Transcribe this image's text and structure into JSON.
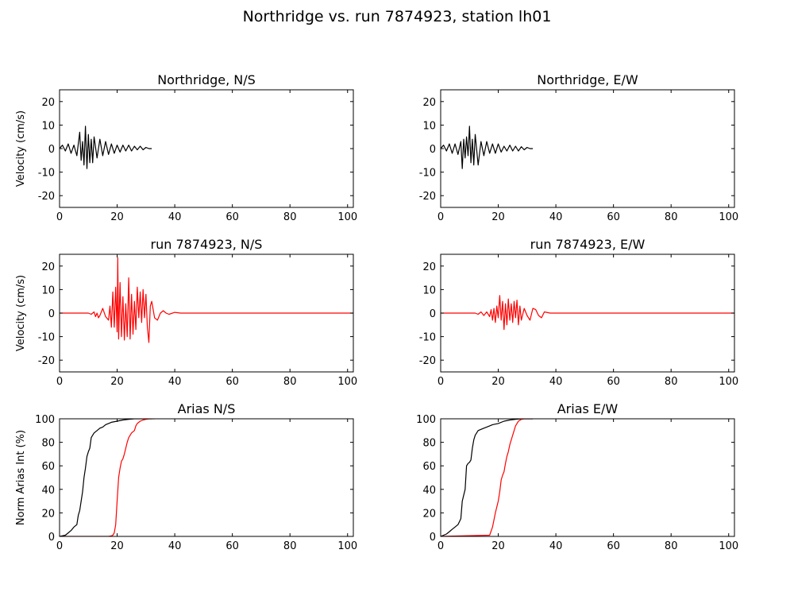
{
  "title": "Northridge vs. run 7874923, station lh01",
  "colors": {
    "recorded": "#000000",
    "simulated": "#ff0000",
    "axes": "#000000"
  },
  "chart_data": [
    {
      "type": "line",
      "title": "Northridge, N/S",
      "xlabel": "",
      "ylabel": "Velocity (cm/s)",
      "xlim": [
        0,
        102
      ],
      "ylim": [
        -25,
        25
      ],
      "xticks": [
        0,
        20,
        40,
        60,
        80,
        100
      ],
      "yticks": [
        -20,
        -10,
        0,
        10,
        20
      ],
      "series": [
        {
          "color": "#000000",
          "x": [
            0,
            1,
            2,
            3,
            4,
            5,
            6,
            7,
            7.5,
            8,
            8.5,
            9,
            9.5,
            10,
            10.5,
            11,
            11.5,
            12,
            13,
            14,
            15,
            16,
            17,
            18,
            19,
            20,
            21,
            22,
            23,
            24,
            25,
            26,
            27,
            28,
            29,
            30,
            31,
            32
          ],
          "y": [
            0,
            1.5,
            -1,
            2,
            -2,
            1.5,
            -3,
            7,
            -5,
            3,
            -7,
            9.5,
            -8.5,
            6,
            -6,
            4,
            -6,
            5,
            -4,
            4,
            -3,
            3,
            -2.5,
            2,
            -2,
            1.5,
            -1.5,
            1.5,
            -1,
            1.5,
            -1,
            1,
            -0.5,
            1,
            -0.5,
            0.5,
            0,
            0
          ]
        }
      ]
    },
    {
      "type": "line",
      "title": "Northridge, E/W",
      "xlabel": "",
      "ylabel": "",
      "xlim": [
        0,
        102
      ],
      "ylim": [
        -25,
        25
      ],
      "xticks": [
        0,
        20,
        40,
        60,
        80,
        100
      ],
      "yticks": [
        -20,
        -10,
        0,
        10,
        20
      ],
      "series": [
        {
          "color": "#000000",
          "x": [
            0,
            1,
            2,
            3,
            4,
            5,
            6,
            7,
            7.5,
            8,
            8.5,
            9,
            9.5,
            10,
            10.5,
            11,
            11.5,
            12,
            13,
            14,
            15,
            16,
            17,
            18,
            19,
            20,
            21,
            22,
            23,
            24,
            25,
            26,
            27,
            28,
            29,
            30,
            31,
            32
          ],
          "y": [
            0,
            1.5,
            -1,
            2,
            -2,
            2,
            -2.5,
            3,
            -8.5,
            4,
            -4,
            5,
            -3,
            9.5,
            -6,
            4,
            -7,
            6,
            -7,
            3,
            -3,
            3,
            -2,
            2,
            -2,
            2,
            -1.5,
            1,
            -1,
            1.5,
            -1,
            1,
            -1,
            0.8,
            -0.5,
            0.5,
            0,
            0
          ]
        }
      ]
    },
    {
      "type": "line",
      "title": "run 7874923, N/S",
      "xlabel": "",
      "ylabel": "Velocity (cm/s)",
      "xlim": [
        0,
        102
      ],
      "ylim": [
        -25,
        25
      ],
      "xticks": [
        0,
        20,
        40,
        60,
        80,
        100
      ],
      "yticks": [
        -20,
        -10,
        0,
        10,
        20
      ],
      "series": [
        {
          "color": "#ff0000",
          "x": [
            0,
            10,
            11,
            12,
            12.5,
            13,
            13.5,
            14,
            15,
            16,
            17,
            17.5,
            18,
            18.5,
            19,
            19.5,
            20,
            20.2,
            20.5,
            21,
            21.5,
            22,
            22.5,
            23,
            23.5,
            24,
            24.5,
            25,
            25.5,
            26,
            26.5,
            27,
            27.5,
            28,
            28.5,
            29,
            29.5,
            30,
            30.5,
            31,
            31.5,
            32,
            33,
            34,
            35,
            36,
            37,
            38,
            40,
            42,
            50,
            60,
            70,
            80,
            90,
            100,
            102
          ],
          "y": [
            0,
            0,
            -0.5,
            0.5,
            -1.5,
            0,
            -2,
            -1,
            2,
            -1.5,
            -3,
            3,
            -6,
            9,
            -6,
            11,
            -8,
            23.5,
            -11,
            13,
            -10,
            7,
            -11.5,
            4,
            -10,
            15,
            -11,
            8,
            -9,
            5,
            -7,
            11,
            -2,
            9,
            -4,
            10,
            -2,
            8,
            -6,
            -12.5,
            3,
            5,
            -2,
            -3,
            0,
            1,
            0,
            -0.5,
            0.3,
            0,
            0,
            0,
            0,
            0,
            0,
            0,
            0
          ]
        }
      ]
    },
    {
      "type": "line",
      "title": "run 7874923, E/W",
      "xlabel": "",
      "ylabel": "",
      "xlim": [
        0,
        102
      ],
      "ylim": [
        -25,
        25
      ],
      "xticks": [
        0,
        20,
        40,
        60,
        80,
        100
      ],
      "yticks": [
        -20,
        -10,
        0,
        10,
        20
      ],
      "series": [
        {
          "color": "#ff0000",
          "x": [
            0,
            12,
            13,
            14,
            15,
            16,
            17,
            17.5,
            18,
            18.5,
            19,
            19.5,
            20,
            20.5,
            21,
            21.5,
            22,
            22.5,
            23,
            23.5,
            24,
            24.5,
            25,
            25.5,
            26,
            26.5,
            27,
            27.5,
            28,
            29,
            30,
            31,
            32,
            33,
            34,
            35,
            36,
            38,
            40,
            50,
            60,
            70,
            80,
            90,
            100,
            102
          ],
          "y": [
            0,
            0,
            -0.5,
            0.5,
            -1,
            0.5,
            -1.5,
            1.5,
            -3,
            2,
            -4,
            3,
            -2,
            7.5,
            -3,
            5,
            -7,
            4,
            -5,
            6,
            -3,
            4,
            -4,
            5,
            -2,
            5.5,
            -5,
            3,
            -3,
            2,
            -1,
            -3,
            2,
            1.5,
            -1,
            -2,
            0.5,
            0,
            0,
            0,
            0,
            0,
            0,
            0,
            0,
            0
          ]
        }
      ]
    },
    {
      "type": "line",
      "title": "Arias N/S",
      "xlabel": "",
      "ylabel": "Norm Arias Int (%)",
      "xlim": [
        0,
        102
      ],
      "ylim": [
        0,
        100
      ],
      "xticks": [
        0,
        20,
        40,
        60,
        80,
        100
      ],
      "yticks": [
        0,
        20,
        40,
        60,
        80,
        100
      ],
      "series": [
        {
          "color": "#000000",
          "x": [
            0,
            2,
            3,
            4,
            5,
            6,
            6.5,
            7,
            7.5,
            8,
            8.5,
            9,
            9.5,
            10,
            10.5,
            11,
            11.5,
            12,
            13,
            14,
            15,
            16,
            17,
            18,
            20,
            22,
            24,
            26,
            28,
            30,
            32
          ],
          "y": [
            0,
            1,
            3,
            5,
            8,
            10,
            18,
            22,
            30,
            38,
            50,
            58,
            68,
            72,
            75,
            84,
            86,
            88,
            90,
            92,
            93,
            95,
            96,
            97,
            98,
            99,
            99.5,
            100,
            100,
            100,
            100
          ]
        },
        {
          "color": "#ff0000",
          "x": [
            0,
            17,
            18,
            18.5,
            19,
            19.5,
            20,
            20.5,
            21,
            21.5,
            22,
            22.5,
            23,
            23.5,
            24,
            24.5,
            25,
            25.5,
            26,
            26.5,
            27,
            28,
            29,
            30,
            31,
            32,
            33
          ],
          "y": [
            0,
            0,
            0.5,
            1,
            3,
            10,
            30,
            50,
            58,
            64,
            66,
            70,
            75,
            80,
            84,
            86,
            88,
            89,
            90,
            94,
            96,
            98,
            99,
            99.5,
            100,
            100,
            100
          ]
        }
      ]
    },
    {
      "type": "line",
      "title": "Arias E/W",
      "xlabel": "",
      "ylabel": "",
      "xlim": [
        0,
        102
      ],
      "ylim": [
        0,
        100
      ],
      "xticks": [
        0,
        20,
        40,
        60,
        80,
        100
      ],
      "yticks": [
        0,
        20,
        40,
        60,
        80,
        100
      ],
      "series": [
        {
          "color": "#000000",
          "x": [
            0,
            2,
            3,
            4,
            5,
            6,
            7,
            7.5,
            8,
            8.5,
            9,
            9.5,
            10,
            10.5,
            11,
            11.5,
            12,
            12.5,
            13,
            14,
            15,
            16,
            17,
            18,
            20,
            22,
            24,
            26,
            28,
            30,
            32
          ],
          "y": [
            0,
            2,
            4,
            6,
            8,
            10,
            15,
            30,
            35,
            40,
            60,
            62,
            63,
            65,
            75,
            82,
            86,
            88,
            90,
            91,
            92,
            93,
            94,
            95,
            96,
            98,
            99,
            99.5,
            100,
            100,
            100
          ]
        },
        {
          "color": "#ff0000",
          "x": [
            0,
            17,
            18,
            19,
            20,
            20.5,
            21,
            21.5,
            22,
            22.5,
            23,
            23.5,
            24,
            24.5,
            25,
            25.5,
            26,
            26.5,
            27,
            28,
            29,
            30,
            31,
            32
          ],
          "y": [
            0,
            1,
            8,
            20,
            30,
            38,
            48,
            52,
            55,
            62,
            68,
            72,
            78,
            82,
            86,
            90,
            94,
            96,
            98,
            99.5,
            100,
            100,
            100,
            100
          ]
        }
      ]
    }
  ]
}
